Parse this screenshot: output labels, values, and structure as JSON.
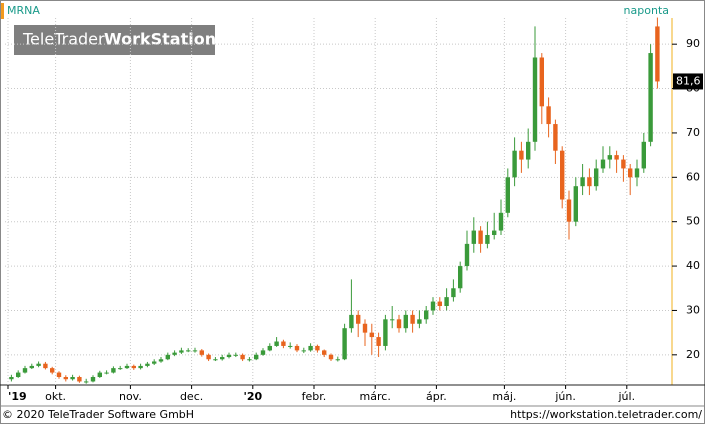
{
  "chart_data": {
    "type": "candlestick",
    "symbol": "MRNA",
    "period": "naponta",
    "logo": [
      "TeleTrader",
      "WorkStation"
    ],
    "footer_left": "© 2020 TeleTrader Software GmbH",
    "footer_right": "https://workstation.teletrader.com/",
    "price_label": "81,6",
    "up_color": "#3a9a3a",
    "down_color": "#e8641e",
    "grid": true,
    "ylim": [
      13.2,
      95.9
    ],
    "yticks": [
      20,
      30,
      40,
      50,
      60,
      70,
      80,
      90
    ],
    "categories": [
      "'19",
      null,
      null,
      null,
      null,
      null,
      null,
      "okt.",
      null,
      null,
      null,
      null,
      null,
      null,
      null,
      null,
      null,
      null,
      "nov.",
      null,
      null,
      null,
      null,
      null,
      null,
      null,
      null,
      "dec.",
      null,
      null,
      null,
      null,
      null,
      null,
      null,
      null,
      "'20",
      null,
      null,
      null,
      null,
      null,
      null,
      null,
      null,
      "febr.",
      null,
      null,
      null,
      null,
      null,
      null,
      null,
      null,
      "márc.",
      null,
      null,
      null,
      null,
      null,
      null,
      null,
      null,
      "ápr.",
      null,
      null,
      null,
      null,
      null,
      null,
      null,
      null,
      null,
      "máj.",
      null,
      null,
      null,
      null,
      null,
      null,
      null,
      null,
      "jún.",
      null,
      null,
      null,
      null,
      null,
      null,
      null,
      null,
      "júl.",
      null,
      null,
      null,
      null
    ],
    "open": [
      14.5,
      15,
      16,
      17,
      17.5,
      18,
      17,
      16,
      15,
      14.5,
      15,
      14,
      14,
      15,
      16,
      16,
      17,
      17,
      17.5,
      17,
      17.5,
      18,
      18.5,
      19,
      20,
      20.5,
      21,
      21,
      21,
      20,
      19,
      19,
      19.5,
      20,
      20,
      19,
      19,
      20,
      21,
      22,
      23,
      22,
      22,
      21,
      21,
      22,
      21,
      20,
      19,
      19,
      26,
      29,
      27,
      25,
      24,
      22,
      28,
      28,
      26,
      29,
      27,
      28,
      30,
      32,
      31,
      33,
      35,
      40,
      45,
      48,
      45,
      47,
      48,
      52,
      60,
      66,
      64,
      68,
      87,
      76,
      72,
      66,
      55,
      50,
      58,
      60,
      58,
      62,
      64,
      65,
      64,
      62,
      60,
      62,
      68,
      94
    ],
    "high": [
      15.5,
      16.5,
      17.5,
      18,
      18.5,
      18.4,
      17.3,
      16.3,
      15.4,
      15.5,
      15.3,
      14.6,
      15.4,
      16.4,
      16.5,
      17.4,
      17.5,
      18,
      17.8,
      18,
      18.4,
      19,
      19.5,
      20.5,
      21,
      21.6,
      21.5,
      21.6,
      21.3,
      20.3,
      19.5,
      20,
      20.5,
      20.5,
      20.3,
      19.5,
      20.5,
      21.5,
      22.6,
      24,
      23.4,
      22.8,
      22.4,
      21.6,
      22.6,
      22.3,
      21.2,
      20.3,
      19.6,
      27,
      37,
      30,
      28,
      27,
      25,
      29,
      31,
      29,
      30,
      30,
      30,
      31,
      33,
      33,
      35,
      37,
      41,
      48,
      51,
      49,
      50,
      52,
      55,
      62,
      69,
      68,
      71,
      94,
      88,
      78,
      73,
      67,
      57,
      60,
      63,
      62,
      64,
      67,
      67,
      66,
      65,
      63,
      64,
      70,
      90,
      96
    ],
    "low": [
      14,
      14.8,
      15.8,
      16.8,
      17.2,
      16.7,
      15.6,
      14.6,
      14,
      14.2,
      13.7,
      13.5,
      13.8,
      14.8,
      15.6,
      15.8,
      16.6,
      16.8,
      16.6,
      16.7,
      17.2,
      17.7,
      18.2,
      18.8,
      19.7,
      20.2,
      20.6,
      20.5,
      19.6,
      18.6,
      18.6,
      18.7,
      19.2,
      19.5,
      18.6,
      18.5,
      18.8,
      19.8,
      20.8,
      21.8,
      21.5,
      21.4,
      20.6,
      20.4,
      20.7,
      20.5,
      19.5,
      18.6,
      18.5,
      18.8,
      25,
      24,
      22,
      20,
      19.5,
      21,
      26,
      25,
      25,
      25,
      26,
      27,
      29,
      30,
      30,
      32,
      34,
      39,
      43,
      43,
      44,
      46,
      47,
      51,
      58,
      61,
      62,
      66,
      72,
      69,
      63,
      53,
      46,
      49,
      56,
      56,
      57,
      61,
      62,
      61,
      59,
      56,
      58,
      61,
      67,
      80
    ],
    "close": [
      15,
      16,
      17,
      17.5,
      18,
      17,
      16,
      15,
      14.5,
      15,
      14,
      14,
      15,
      16,
      16,
      17,
      17,
      17.5,
      17,
      17.5,
      18,
      18.5,
      19,
      20,
      20.5,
      21,
      21,
      21,
      20,
      19,
      19,
      19.5,
      20,
      20,
      19,
      19,
      20,
      21,
      22,
      23,
      22,
      22,
      21,
      21,
      22,
      21,
      20,
      19,
      19,
      26,
      29,
      27,
      25,
      24,
      22,
      28,
      28,
      26,
      29,
      27,
      28,
      30,
      32,
      31,
      33,
      35,
      40,
      45,
      48,
      45,
      47,
      48,
      52,
      60,
      66,
      64,
      68,
      87,
      76,
      72,
      66,
      55,
      50,
      58,
      60,
      58,
      62,
      64,
      65,
      64,
      62,
      60,
      62,
      68,
      88,
      81.6
    ]
  }
}
